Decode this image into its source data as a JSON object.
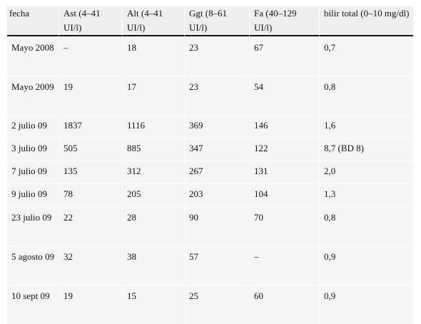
{
  "table": {
    "headers": [
      "fecha",
      "Ast (4–41 UI/l)",
      "Alt (4–41 UI/l)",
      "Ggt (8–61 UI/l)",
      "Fa (40–129 UI/l)",
      "bilir total (0–10 mg/dl)"
    ],
    "rows": [
      [
        "Mayo 2008",
        "–",
        "18",
        "23",
        "67",
        "0,7"
      ],
      [
        "Mayo 2009",
        "19",
        "17",
        "23",
        "54",
        "0,8"
      ],
      [
        "2 julio 09",
        "1837",
        "1116",
        "369",
        "146",
        "1,6"
      ],
      [
        "3 julio 09",
        "505",
        "885",
        "347",
        "122",
        "8,7 (BD 8)"
      ],
      [
        "7 julio 09",
        "135",
        "312",
        "267",
        "131",
        "2,0"
      ],
      [
        "9 julio 09",
        "78",
        "205",
        "203",
        "104",
        "1,3"
      ],
      [
        "23 julio 09",
        "22",
        "28",
        "90",
        "70",
        "0,8"
      ],
      [
        "5 agosto 09",
        "32",
        "38",
        "57",
        "–",
        "0,9"
      ],
      [
        "10 sept 09",
        "19",
        "15",
        "25",
        "60",
        "0,9"
      ]
    ]
  }
}
